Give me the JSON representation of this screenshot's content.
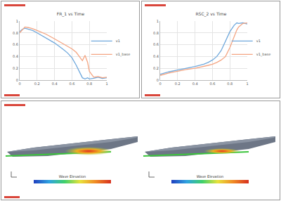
{
  "chart_data": [
    {
      "type": "line",
      "title": "FR_1 vs Time",
      "x": [
        0,
        0.03,
        0.06,
        0.1,
        0.15,
        0.2,
        0.3,
        0.4,
        0.5,
        0.55,
        0.6,
        0.65,
        0.7,
        0.72,
        0.75,
        0.78,
        0.8,
        0.85,
        0.9,
        0.95,
        1.0
      ],
      "series": [
        {
          "name": "v1",
          "color": "#6fa8dc",
          "values": [
            0.82,
            0.86,
            0.88,
            0.86,
            0.84,
            0.8,
            0.72,
            0.63,
            0.52,
            0.46,
            0.38,
            0.25,
            0.1,
            0.04,
            0.02,
            0.04,
            0.02,
            0.03,
            0.05,
            0.03,
            0.04
          ]
        },
        {
          "name": "v1_base",
          "color": "#f4a582",
          "values": [
            0.8,
            0.85,
            0.9,
            0.89,
            0.87,
            0.84,
            0.78,
            0.7,
            0.62,
            0.58,
            0.53,
            0.47,
            0.37,
            0.33,
            0.42,
            0.3,
            0.15,
            0.05,
            0.06,
            0.04,
            0.05
          ]
        }
      ],
      "xlim": [
        0,
        1
      ],
      "xticks": [
        0,
        0.2,
        0.4,
        0.6,
        0.8,
        1
      ],
      "ylim": [
        0,
        1
      ],
      "yticks": [
        0,
        0.2,
        0.4,
        0.6,
        0.8,
        1
      ],
      "grid": true,
      "legend": "right"
    },
    {
      "type": "line",
      "title": "RSC_2 vs Time",
      "x": [
        0,
        0.1,
        0.2,
        0.3,
        0.4,
        0.5,
        0.55,
        0.6,
        0.65,
        0.7,
        0.75,
        0.8,
        0.85,
        0.88,
        0.9,
        0.95,
        1.0
      ],
      "series": [
        {
          "name": "v1",
          "color": "#6fa8dc",
          "values": [
            0.1,
            0.14,
            0.17,
            0.2,
            0.23,
            0.27,
            0.3,
            0.34,
            0.4,
            0.5,
            0.65,
            0.82,
            0.93,
            0.97,
            0.96,
            0.97,
            0.95
          ]
        },
        {
          "name": "v1_base",
          "color": "#f4a582",
          "values": [
            0.08,
            0.12,
            0.15,
            0.18,
            0.2,
            0.23,
            0.25,
            0.27,
            0.3,
            0.34,
            0.4,
            0.55,
            0.75,
            0.85,
            0.9,
            0.96,
            0.97
          ]
        }
      ],
      "xlim": [
        0,
        1
      ],
      "xticks": [
        0,
        0.2,
        0.4,
        0.6,
        0.8,
        1
      ],
      "ylim": [
        0,
        1
      ],
      "yticks": [
        0,
        0.2,
        0.4,
        0.6,
        0.8,
        1
      ],
      "grid": true,
      "legend": "right"
    }
  ],
  "scenes": [
    {
      "colorbar_title": "Wave Elevation"
    },
    {
      "colorbar_title": "Wave Elevation"
    }
  ]
}
